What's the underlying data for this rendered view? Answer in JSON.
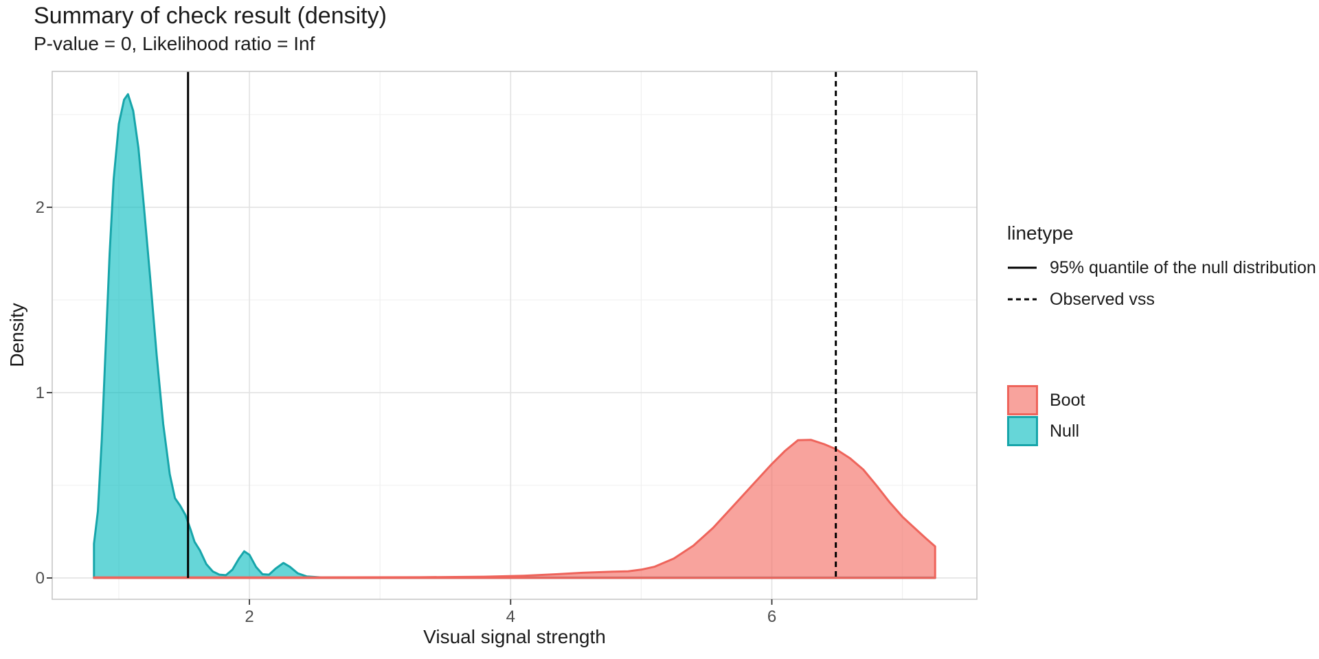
{
  "chart_data": {
    "type": "area",
    "title": "Summary of check result (density)",
    "subtitle": "P-value = 0, Likelihood ratio = Inf",
    "xlabel": "Visual signal strength",
    "ylabel": "Density",
    "x_range": [
      0.49,
      7.57
    ],
    "y_range": [
      -0.115,
      2.733
    ],
    "x_ticks": [
      2,
      4,
      6
    ],
    "y_ticks": [
      0,
      1,
      2
    ],
    "x_minor": [
      1,
      3,
      5,
      7
    ],
    "y_minor": [
      0.5,
      1.5,
      2.5
    ],
    "grid": "on",
    "legend_position": "right",
    "series": [
      {
        "name": "Null",
        "stroke": "#17A5AA",
        "fill": "rgba(0,186,190,0.60)",
        "points": [
          [
            0.81,
            0.185
          ],
          [
            0.84,
            0.36
          ],
          [
            0.87,
            0.75
          ],
          [
            0.9,
            1.25
          ],
          [
            0.93,
            1.75
          ],
          [
            0.96,
            2.15
          ],
          [
            1.0,
            2.45
          ],
          [
            1.04,
            2.58
          ],
          [
            1.07,
            2.61
          ],
          [
            1.11,
            2.52
          ],
          [
            1.15,
            2.32
          ],
          [
            1.19,
            2.02
          ],
          [
            1.24,
            1.62
          ],
          [
            1.29,
            1.2
          ],
          [
            1.34,
            0.83
          ],
          [
            1.39,
            0.56
          ],
          [
            1.43,
            0.43
          ],
          [
            1.47,
            0.39
          ],
          [
            1.51,
            0.34
          ],
          [
            1.55,
            0.26
          ],
          [
            1.58,
            0.195
          ],
          [
            1.62,
            0.15
          ],
          [
            1.67,
            0.075
          ],
          [
            1.72,
            0.035
          ],
          [
            1.77,
            0.018
          ],
          [
            1.82,
            0.015
          ],
          [
            1.87,
            0.045
          ],
          [
            1.92,
            0.105
          ],
          [
            1.96,
            0.144
          ],
          [
            2.0,
            0.125
          ],
          [
            2.05,
            0.06
          ],
          [
            2.1,
            0.02
          ],
          [
            2.15,
            0.018
          ],
          [
            2.2,
            0.05
          ],
          [
            2.26,
            0.081
          ],
          [
            2.31,
            0.06
          ],
          [
            2.37,
            0.025
          ],
          [
            2.44,
            0.008
          ],
          [
            2.55,
            0.003
          ],
          [
            3.5,
            0.002
          ],
          [
            5.0,
            0.002
          ],
          [
            6.5,
            0.002
          ],
          [
            7.25,
            0.002
          ]
        ]
      },
      {
        "name": "Boot",
        "stroke": "#EE645B",
        "fill": "rgba(244,106,97,0.62)",
        "points": [
          [
            0.81,
            0.003
          ],
          [
            1.5,
            0.003
          ],
          [
            2.5,
            0.003
          ],
          [
            3.3,
            0.004
          ],
          [
            3.8,
            0.007
          ],
          [
            4.1,
            0.012
          ],
          [
            4.35,
            0.02
          ],
          [
            4.55,
            0.028
          ],
          [
            4.75,
            0.033
          ],
          [
            4.9,
            0.036
          ],
          [
            5.0,
            0.045
          ],
          [
            5.1,
            0.06
          ],
          [
            5.25,
            0.105
          ],
          [
            5.4,
            0.175
          ],
          [
            5.55,
            0.27
          ],
          [
            5.7,
            0.385
          ],
          [
            5.85,
            0.5
          ],
          [
            6.0,
            0.615
          ],
          [
            6.1,
            0.685
          ],
          [
            6.2,
            0.743
          ],
          [
            6.3,
            0.745
          ],
          [
            6.4,
            0.722
          ],
          [
            6.49,
            0.695
          ],
          [
            6.6,
            0.645
          ],
          [
            6.7,
            0.585
          ],
          [
            6.8,
            0.5
          ],
          [
            6.9,
            0.41
          ],
          [
            7.0,
            0.33
          ],
          [
            7.1,
            0.265
          ],
          [
            7.18,
            0.213
          ],
          [
            7.25,
            0.17
          ]
        ]
      }
    ],
    "vlines": [
      {
        "label": "95% quantile of the null distribution",
        "x": 1.53,
        "style": "solid"
      },
      {
        "label": "Observed vss",
        "x": 6.49,
        "style": "dashed"
      }
    ],
    "colors": {
      "vline": "#000000",
      "grid_major": "#E2E2E2",
      "grid_minor": "#F0F0F0",
      "panel_border": "#C6C6C6",
      "tick": "#333333",
      "tick_label": "#4D4D4D",
      "text": "#1A1A1A",
      "background": "#FFFFFF"
    }
  },
  "legend": {
    "linetype_title": "linetype",
    "linetype_items": [
      {
        "label": "95% quantile of the null distribution",
        "style": "solid"
      },
      {
        "label": "Observed vss",
        "style": "dashed"
      }
    ],
    "fill_items": [
      {
        "label": "Boot",
        "series": "Boot"
      },
      {
        "label": "Null",
        "series": "Null"
      }
    ]
  }
}
